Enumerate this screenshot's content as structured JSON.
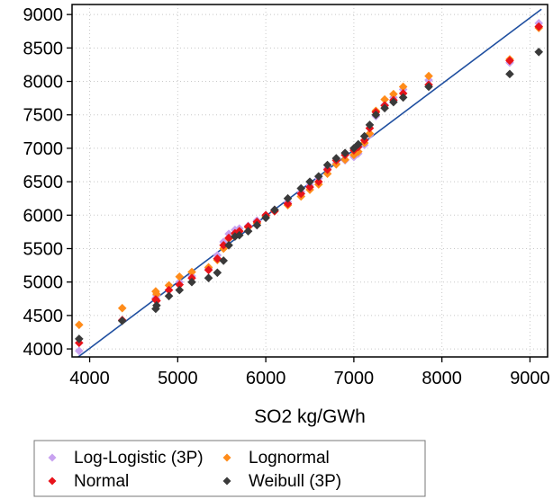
{
  "chart_data": {
    "type": "scatter",
    "title": "",
    "xlabel": "SO2 kg/GWh",
    "ylabel": "",
    "xlim": [
      3800,
      9200
    ],
    "ylim": [
      3880,
      9150
    ],
    "x_ticks": [
      4000,
      5000,
      6000,
      7000,
      8000,
      9000
    ],
    "y_ticks": [
      4000,
      4500,
      5000,
      5500,
      6000,
      6500,
      7000,
      7500,
      8000,
      8500,
      9000
    ],
    "grid": true,
    "legend_position": "bottom",
    "reference_line": {
      "x": [
        3870,
        9130
      ],
      "y": [
        3880,
        9080
      ],
      "color": "#1f4fa0"
    },
    "series": [
      {
        "name": "Log-Logistic (3P)",
        "color": "#c8a2f0",
        "marker": "diamond",
        "points": [
          [
            3880,
            3970
          ],
          [
            4370,
            4430
          ],
          [
            4750,
            4760
          ],
          [
            4760,
            4800
          ],
          [
            4900,
            4880
          ],
          [
            5020,
            5000
          ],
          [
            5160,
            5090
          ],
          [
            5350,
            5200
          ],
          [
            5450,
            5400
          ],
          [
            5520,
            5600
          ],
          [
            5580,
            5720
          ],
          [
            5650,
            5780
          ],
          [
            5700,
            5800
          ],
          [
            5800,
            5840
          ],
          [
            5900,
            5920
          ],
          [
            6000,
            6000
          ],
          [
            6100,
            6080
          ],
          [
            6250,
            6200
          ],
          [
            6400,
            6350
          ],
          [
            6500,
            6450
          ],
          [
            6600,
            6550
          ],
          [
            6700,
            6700
          ],
          [
            6800,
            6780
          ],
          [
            6900,
            6820
          ],
          [
            7000,
            6870
          ],
          [
            7050,
            6920
          ],
          [
            7120,
            7050
          ],
          [
            7180,
            7200
          ],
          [
            7250,
            7480
          ],
          [
            7350,
            7650
          ],
          [
            7450,
            7760
          ],
          [
            7560,
            7880
          ],
          [
            7850,
            8020
          ],
          [
            8770,
            8280
          ],
          [
            9100,
            8870
          ]
        ]
      },
      {
        "name": "Lognormal",
        "color": "#ff8c1a",
        "marker": "diamond",
        "points": [
          [
            3880,
            4360
          ],
          [
            4370,
            4610
          ],
          [
            4750,
            4860
          ],
          [
            4760,
            4820
          ],
          [
            4900,
            4950
          ],
          [
            5020,
            5080
          ],
          [
            5160,
            5150
          ],
          [
            5350,
            5220
          ],
          [
            5450,
            5330
          ],
          [
            5520,
            5500
          ],
          [
            5580,
            5650
          ],
          [
            5650,
            5720
          ],
          [
            5700,
            5760
          ],
          [
            5800,
            5820
          ],
          [
            5900,
            5880
          ],
          [
            6000,
            5980
          ],
          [
            6100,
            6060
          ],
          [
            6250,
            6150
          ],
          [
            6400,
            6280
          ],
          [
            6500,
            6380
          ],
          [
            6600,
            6460
          ],
          [
            6700,
            6620
          ],
          [
            6800,
            6760
          ],
          [
            6900,
            6830
          ],
          [
            7000,
            6900
          ],
          [
            7050,
            6950
          ],
          [
            7120,
            7080
          ],
          [
            7180,
            7220
          ],
          [
            7250,
            7560
          ],
          [
            7350,
            7730
          ],
          [
            7450,
            7810
          ],
          [
            7560,
            7920
          ],
          [
            7850,
            8080
          ],
          [
            8770,
            8330
          ],
          [
            9100,
            8800
          ]
        ]
      },
      {
        "name": "Normal",
        "color": "#e8131b",
        "marker": "diamond",
        "points": [
          [
            3880,
            4090
          ],
          [
            4370,
            4430
          ],
          [
            4750,
            4740
          ],
          [
            4760,
            4720
          ],
          [
            4900,
            4880
          ],
          [
            5020,
            4960
          ],
          [
            5160,
            5060
          ],
          [
            5350,
            5180
          ],
          [
            5450,
            5350
          ],
          [
            5520,
            5550
          ],
          [
            5580,
            5660
          ],
          [
            5650,
            5730
          ],
          [
            5700,
            5760
          ],
          [
            5800,
            5830
          ],
          [
            5900,
            5900
          ],
          [
            6000,
            6000
          ],
          [
            6100,
            6060
          ],
          [
            6250,
            6170
          ],
          [
            6400,
            6320
          ],
          [
            6500,
            6420
          ],
          [
            6600,
            6500
          ],
          [
            6700,
            6680
          ],
          [
            6800,
            6820
          ],
          [
            6900,
            6900
          ],
          [
            7000,
            6970
          ],
          [
            7050,
            7020
          ],
          [
            7120,
            7120
          ],
          [
            7180,
            7300
          ],
          [
            7250,
            7540
          ],
          [
            7350,
            7640
          ],
          [
            7450,
            7720
          ],
          [
            7560,
            7820
          ],
          [
            7850,
            7950
          ],
          [
            8770,
            8310
          ],
          [
            9100,
            8820
          ]
        ]
      },
      {
        "name": "Weibull (3P)",
        "color": "#3a3a3a",
        "marker": "diamond",
        "points": [
          [
            3880,
            4150
          ],
          [
            4370,
            4420
          ],
          [
            4750,
            4600
          ],
          [
            4760,
            4650
          ],
          [
            4900,
            4790
          ],
          [
            5020,
            4880
          ],
          [
            5160,
            5000
          ],
          [
            5350,
            5060
          ],
          [
            5450,
            5140
          ],
          [
            5520,
            5320
          ],
          [
            5580,
            5550
          ],
          [
            5650,
            5680
          ],
          [
            5700,
            5700
          ],
          [
            5800,
            5760
          ],
          [
            5900,
            5850
          ],
          [
            6000,
            5960
          ],
          [
            6100,
            6080
          ],
          [
            6250,
            6250
          ],
          [
            6400,
            6400
          ],
          [
            6500,
            6500
          ],
          [
            6600,
            6580
          ],
          [
            6700,
            6750
          ],
          [
            6800,
            6850
          ],
          [
            6900,
            6930
          ],
          [
            7000,
            7000
          ],
          [
            7050,
            7060
          ],
          [
            7120,
            7180
          ],
          [
            7180,
            7350
          ],
          [
            7250,
            7500
          ],
          [
            7350,
            7600
          ],
          [
            7450,
            7690
          ],
          [
            7560,
            7760
          ],
          [
            7850,
            7920
          ],
          [
            8770,
            8110
          ],
          [
            9100,
            8440
          ]
        ]
      }
    ]
  }
}
